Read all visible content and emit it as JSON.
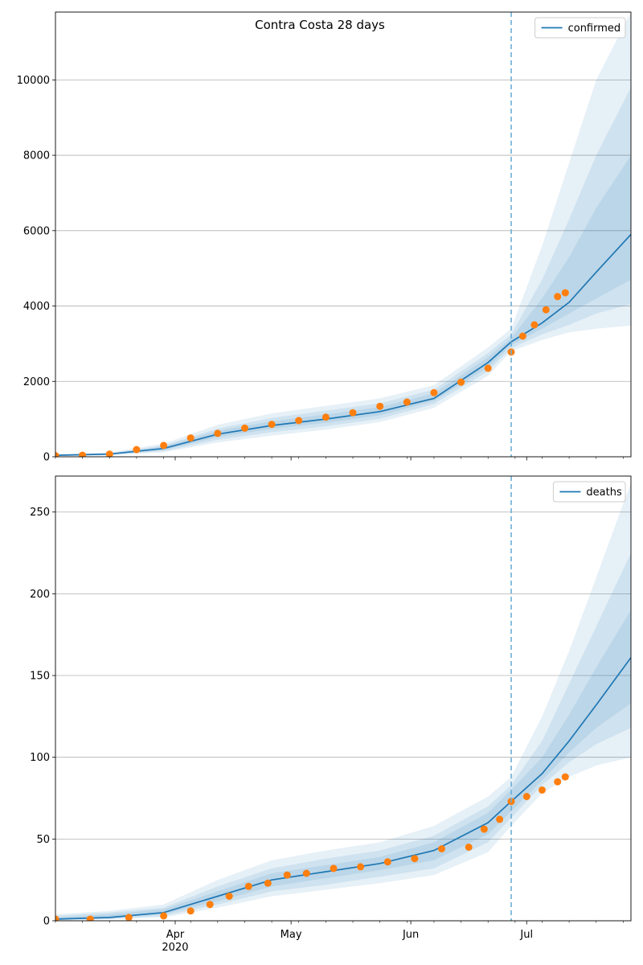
{
  "chart_data": [
    {
      "type": "line",
      "title": "Contra Costa 28 days",
      "xlabel": "",
      "ylabel": "",
      "x_range": [
        "2020-03-01",
        "2020-07-28"
      ],
      "ylim": [
        0,
        11800
      ],
      "yticks": [
        0,
        2000,
        4000,
        6000,
        8000,
        10000
      ],
      "grid": "y-major",
      "legend_position": "top-right",
      "vline_date": "2020-06-27",
      "colors": {
        "model": "#1f77b4",
        "observed": "#ff7f0e",
        "band": "#1f77b4"
      },
      "series": [
        {
          "name": "confirmed",
          "kind": "model-median",
          "x": [
            "2020-03-01",
            "2020-03-15",
            "2020-03-29",
            "2020-04-12",
            "2020-04-26",
            "2020-05-10",
            "2020-05-24",
            "2020-06-07",
            "2020-06-21",
            "2020-06-27",
            "2020-07-05",
            "2020-07-12",
            "2020-07-19",
            "2020-07-28"
          ],
          "values": [
            40,
            70,
            220,
            600,
            830,
            1000,
            1200,
            1550,
            2500,
            3050,
            3550,
            4100,
            4900,
            5900
          ]
        },
        {
          "kind": "observed",
          "x": [
            "2020-03-01",
            "2020-03-08",
            "2020-03-15",
            "2020-03-22",
            "2020-03-29",
            "2020-04-05",
            "2020-04-12",
            "2020-04-19",
            "2020-04-26",
            "2020-05-03",
            "2020-05-10",
            "2020-05-17",
            "2020-05-24",
            "2020-05-31",
            "2020-06-07",
            "2020-06-14",
            "2020-06-21",
            "2020-06-27",
            "2020-06-30",
            "2020-07-03",
            "2020-07-06",
            "2020-07-09",
            "2020-07-11"
          ],
          "values": [
            30,
            40,
            70,
            190,
            300,
            500,
            620,
            760,
            860,
            960,
            1050,
            1170,
            1340,
            1450,
            1700,
            1980,
            2350,
            2780,
            3200,
            3500,
            3900,
            4250,
            4350
          ]
        }
      ],
      "bands": [
        {
          "lower": [
            20,
            40,
            120,
            380,
            560,
            720,
            920,
            1300,
            2150,
            2800,
            3100,
            3300,
            3400,
            3480
          ],
          "upper": [
            60,
            110,
            350,
            850,
            1150,
            1350,
            1550,
            1900,
            2900,
            3400,
            5600,
            7800,
            10000,
            11800
          ]
        },
        {
          "lower": [
            25,
            50,
            150,
            450,
            650,
            810,
            1010,
            1400,
            2270,
            2880,
            3250,
            3500,
            3800,
            4050
          ],
          "upper": [
            55,
            95,
            300,
            750,
            1030,
            1220,
            1420,
            1780,
            2750,
            3250,
            4700,
            6300,
            8000,
            9800
          ]
        },
        {
          "lower": [
            30,
            60,
            180,
            520,
            740,
            900,
            1100,
            1480,
            2380,
            2960,
            3400,
            3800,
            4200,
            4700
          ],
          "upper": [
            50,
            85,
            270,
            690,
            940,
            1120,
            1320,
            1680,
            2640,
            3150,
            4200,
            5300,
            6600,
            8000
          ]
        }
      ]
    },
    {
      "type": "line",
      "title": "",
      "xlabel": "",
      "ylabel": "",
      "x_range": [
        "2020-03-01",
        "2020-07-28"
      ],
      "ylim": [
        0,
        272
      ],
      "yticks": [
        0,
        50,
        100,
        150,
        200,
        250
      ],
      "xticks": [
        {
          "date": "2020-04-01",
          "label": "Apr",
          "sublabel": "2020"
        },
        {
          "date": "2020-05-01",
          "label": "May"
        },
        {
          "date": "2020-06-01",
          "label": "Jun"
        },
        {
          "date": "2020-07-01",
          "label": "Jul"
        }
      ],
      "grid": "y-major",
      "legend_position": "top-right",
      "vline_date": "2020-06-27",
      "colors": {
        "model": "#1f77b4",
        "observed": "#ff7f0e",
        "band": "#1f77b4"
      },
      "series": [
        {
          "name": "deaths",
          "kind": "model-median",
          "x": [
            "2020-03-01",
            "2020-03-15",
            "2020-03-29",
            "2020-04-12",
            "2020-04-26",
            "2020-05-10",
            "2020-05-24",
            "2020-06-07",
            "2020-06-21",
            "2020-06-27",
            "2020-07-05",
            "2020-07-12",
            "2020-07-19",
            "2020-07-28"
          ],
          "values": [
            1,
            2,
            5,
            15,
            25,
            30,
            35,
            43,
            60,
            73,
            90,
            110,
            132,
            161
          ]
        },
        {
          "kind": "observed",
          "x": [
            "2020-03-01",
            "2020-03-10",
            "2020-03-20",
            "2020-03-29",
            "2020-04-05",
            "2020-04-10",
            "2020-04-15",
            "2020-04-20",
            "2020-04-25",
            "2020-04-30",
            "2020-05-05",
            "2020-05-12",
            "2020-05-19",
            "2020-05-26",
            "2020-06-02",
            "2020-06-09",
            "2020-06-16",
            "2020-06-20",
            "2020-06-24",
            "2020-06-27",
            "2020-07-01",
            "2020-07-05",
            "2020-07-09",
            "2020-07-11"
          ],
          "values": [
            1,
            1,
            2,
            3,
            6,
            10,
            15,
            21,
            23,
            28,
            29,
            32,
            33,
            36,
            38,
            44,
            45,
            56,
            62,
            73,
            76,
            80,
            85,
            88
          ]
        }
      ],
      "bands": [
        {
          "lower": [
            0,
            1,
            2,
            8,
            15,
            19,
            23,
            28,
            42,
            58,
            78,
            88,
            95,
            100
          ],
          "upper": [
            4,
            6,
            10,
            25,
            37,
            43,
            48,
            58,
            76,
            88,
            125,
            165,
            210,
            268
          ]
        },
        {
          "lower": [
            1,
            1,
            3,
            10,
            18,
            22,
            27,
            32,
            48,
            63,
            83,
            97,
            108,
            118
          ],
          "upper": [
            3,
            5,
            8,
            21,
            32,
            38,
            43,
            52,
            70,
            83,
            110,
            145,
            180,
            225
          ]
        },
        {
          "lower": [
            1,
            2,
            4,
            12,
            21,
            26,
            31,
            37,
            53,
            67,
            86,
            103,
            118,
            133
          ],
          "upper": [
            2,
            4,
            7,
            18,
            29,
            34,
            39,
            48,
            66,
            80,
            100,
            126,
            155,
            190
          ]
        }
      ]
    }
  ]
}
